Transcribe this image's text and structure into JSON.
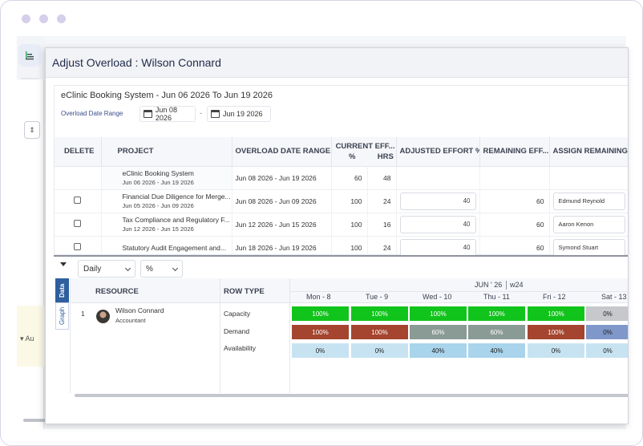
{
  "dialog": {
    "title": "Adjust Overload : Wilson Connard",
    "project_range_title": "eClinic Booking System - Jun 06 2026 To Jun 19 2026",
    "overload_date_range_label": "Overload Date Range",
    "date_from": "Jun 08 2026",
    "date_sep": "-",
    "date_to": "Jun 19 2026"
  },
  "grid": {
    "headers": {
      "delete": "DELETE",
      "project": "PROJECT",
      "overload_range": "OVERLOAD DATE RANGE",
      "current_effort": "CURRENT EFF...",
      "pct": "%",
      "hrs": "HRS",
      "adjusted": "ADJUSTED EFFORT %",
      "remaining": "REMAINING EFF...",
      "assign": "ASSIGN REMAINING"
    },
    "rows": [
      {
        "project": "eClinic Booking System",
        "dates": "Jun 06 2026 - Jun 19 2026",
        "range": "Jun 08 2026 - Jun 19 2026",
        "pct": "60",
        "hrs": "48",
        "adjusted": "",
        "remaining": "",
        "assign": "",
        "has_checkbox": false,
        "highlight": true
      },
      {
        "project": "Financial Due Diligence for Merge...",
        "dates": "Jun 05 2026 - Jun 09 2026",
        "range": "Jun 08 2026 - Jun 09 2026",
        "pct": "100",
        "hrs": "24",
        "adjusted": "40",
        "remaining": "60",
        "assign": "Edmund Reynold",
        "has_checkbox": true,
        "highlight": false
      },
      {
        "project": "Tax Compliance and Regulatory F...",
        "dates": "Jun 12 2026 - Jun 15 2026",
        "range": "Jun 12 2026 - Jun 15 2026",
        "pct": "100",
        "hrs": "16",
        "adjusted": "40",
        "remaining": "60",
        "assign": "Aaron Kenon",
        "has_checkbox": true,
        "highlight": false
      },
      {
        "project": "Statutory Audit Engagement and...",
        "dates": "",
        "range": "Jun 18 2026 - Jun 19 2026",
        "pct": "100",
        "hrs": "24",
        "adjusted": "40",
        "remaining": "60",
        "assign": "Symond Stuart",
        "has_checkbox": true,
        "highlight": false
      }
    ]
  },
  "resource_view": {
    "period": "Daily",
    "unit": "%",
    "tabs": [
      "Data",
      "Graph"
    ],
    "headers": {
      "resource": "RESOURCE",
      "row_type": "ROW TYPE"
    },
    "month": "JUN ' 26",
    "week": "w24",
    "days": [
      "Mon - 8",
      "Tue - 9",
      "Wed - 10",
      "Thu - 11",
      "Fri - 12",
      "Sat - 13"
    ],
    "resource": {
      "index": "1",
      "name": "Wilson Connard",
      "role": "Accountant"
    },
    "row_types": [
      "Capacity",
      "Demand",
      "Availability"
    ],
    "capacity": [
      "100%",
      "100%",
      "100%",
      "100%",
      "100%",
      "0%"
    ],
    "demand": [
      "100%",
      "100%",
      "60%",
      "60%",
      "100%",
      "0%"
    ],
    "availability": [
      "0%",
      "0%",
      "40%",
      "40%",
      "0%",
      "0%"
    ],
    "colors": {
      "capacity": [
        "#11c41b",
        "#11c41b",
        "#11c41b",
        "#11c41b",
        "#11c41b",
        "#c6c8cc"
      ],
      "demand": [
        "#a5452f",
        "#a5452f",
        "#8a9a94",
        "#8a9a94",
        "#a5452f",
        "#7f98c9"
      ],
      "availability": [
        "#c7e3f2",
        "#c7e3f2",
        "#a9d4ec",
        "#a9d4ec",
        "#c7e3f2",
        "#c7e3f2"
      ]
    }
  }
}
